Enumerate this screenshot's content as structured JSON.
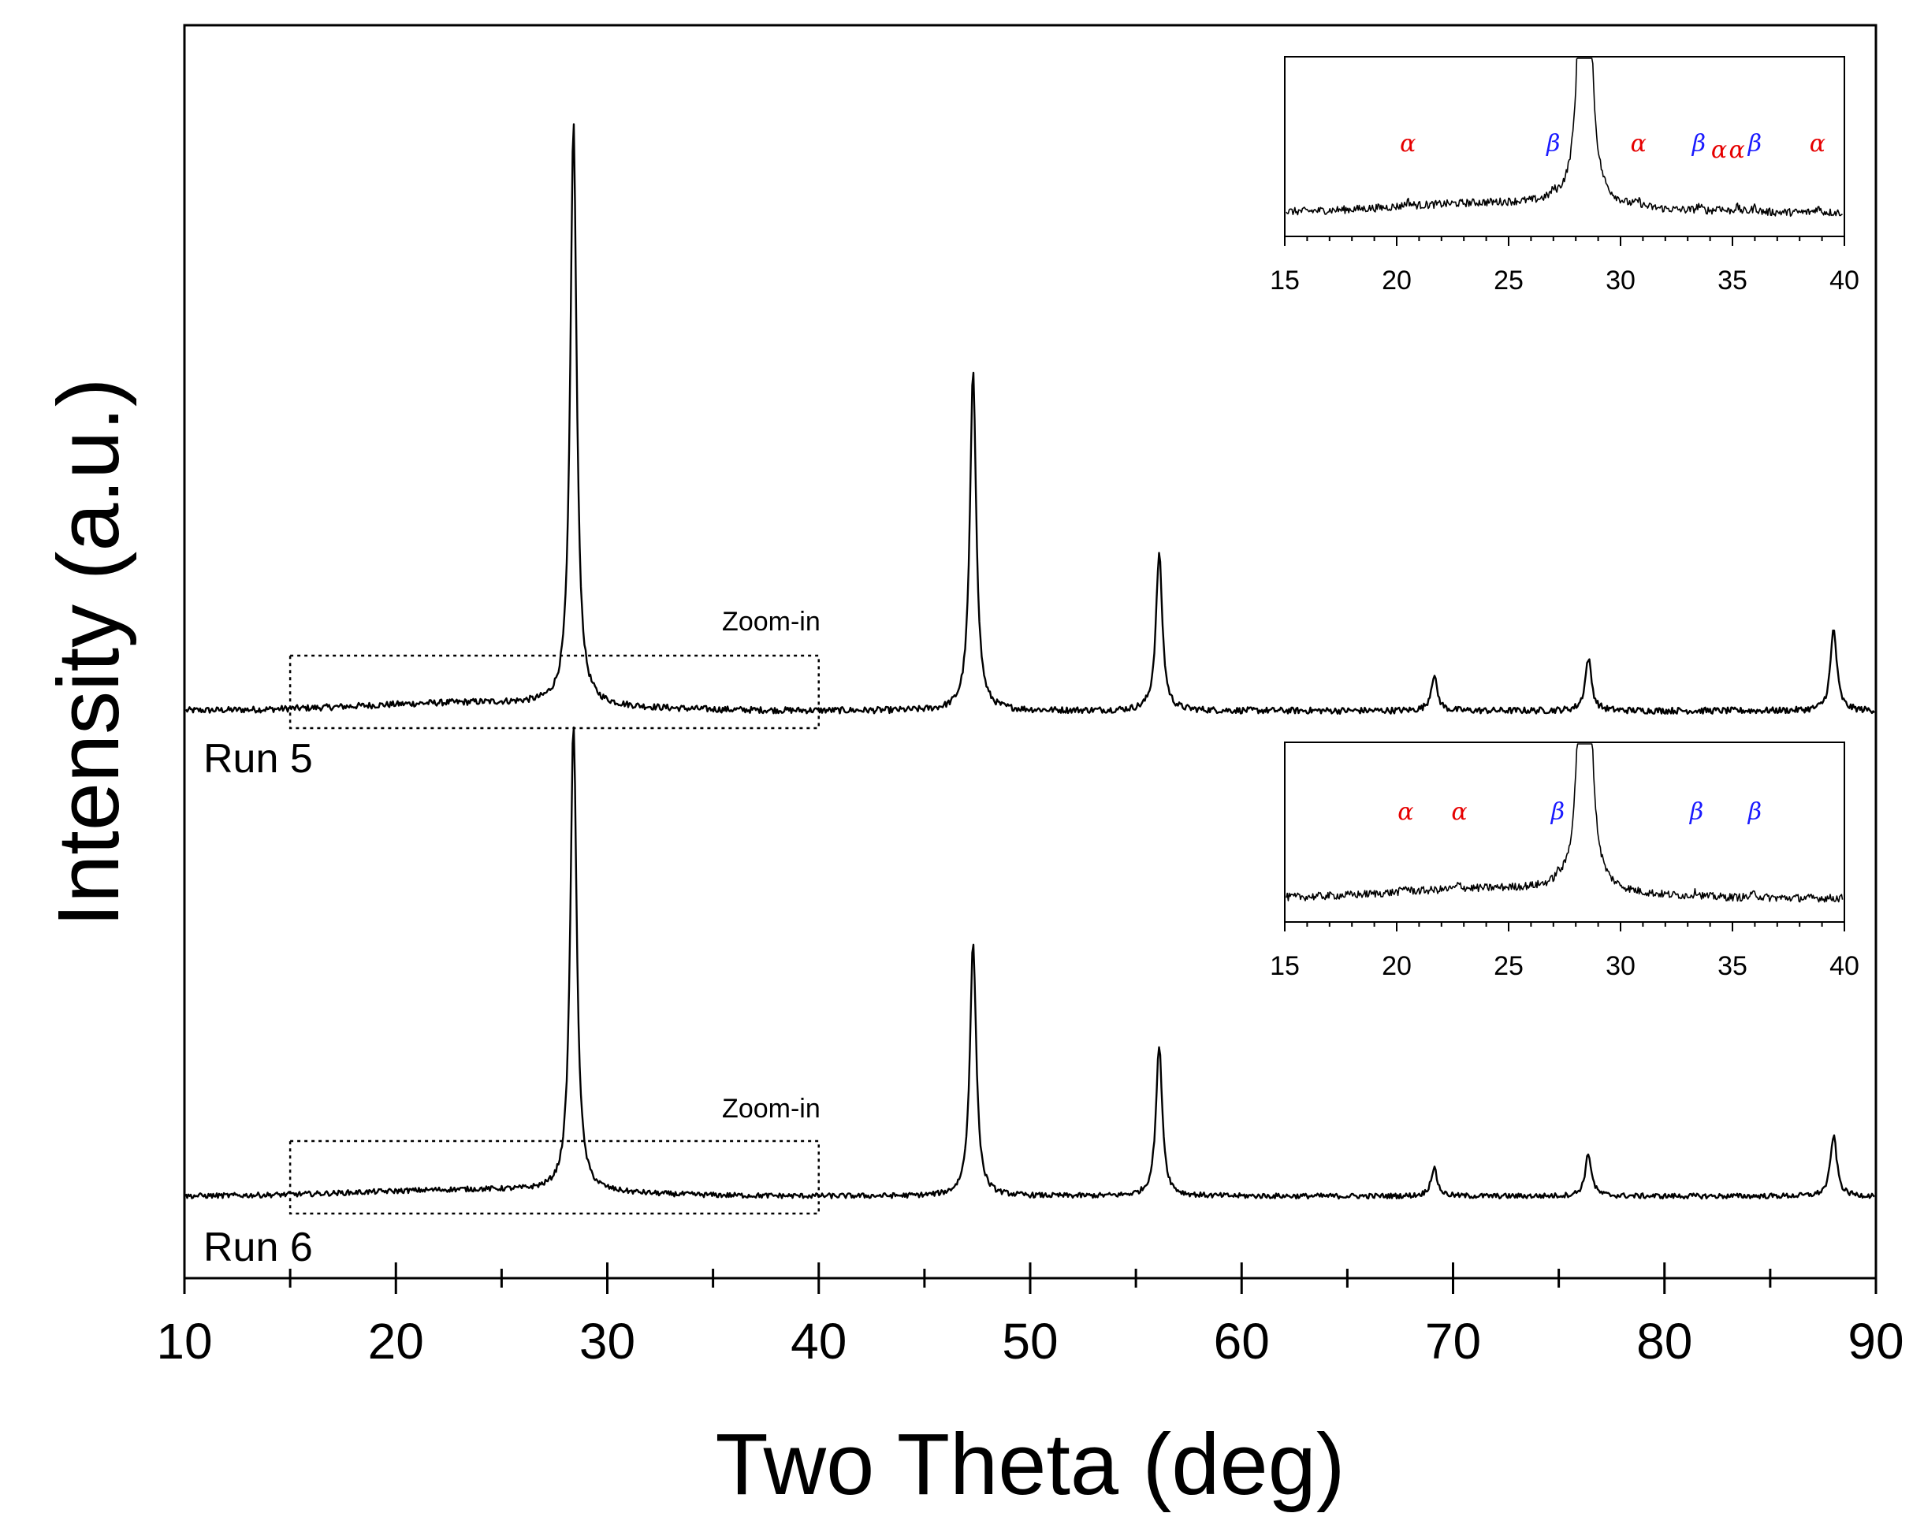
{
  "chart_data": {
    "type": "line",
    "xlabel": "Two Theta (deg)",
    "ylabel": "Intensity (a.u.)",
    "xlim": [
      10,
      90
    ],
    "x_ticks": [
      10,
      20,
      30,
      40,
      50,
      60,
      70,
      80,
      90
    ],
    "colors": {
      "trace": "#000000",
      "alpha": "#e60000",
      "beta": "#1a1aff"
    },
    "series": [
      {
        "name": "Run 5",
        "label": "Run 5",
        "zoom_label": "Zoom-in",
        "zoom_range": [
          15,
          40
        ],
        "peaks": [
          {
            "x": 28.4,
            "height": 100
          },
          {
            "x": 47.3,
            "height": 58
          },
          {
            "x": 56.1,
            "height": 27
          },
          {
            "x": 69.1,
            "height": 6
          },
          {
            "x": 76.4,
            "height": 9
          },
          {
            "x": 88.0,
            "height": 14
          }
        ],
        "inset": {
          "xlim": [
            15,
            40
          ],
          "x_ticks": [
            15,
            20,
            25,
            30,
            35,
            40
          ],
          "phase_labels": [
            {
              "x": 20.5,
              "phase": "alpha",
              "text": "α"
            },
            {
              "x": 27.0,
              "phase": "beta",
              "text": "β"
            },
            {
              "x": 30.8,
              "phase": "alpha",
              "text": "α"
            },
            {
              "x": 33.5,
              "phase": "beta",
              "text": "β"
            },
            {
              "x": 34.4,
              "phase": "alpha",
              "text": "α"
            },
            {
              "x": 35.2,
              "phase": "alpha",
              "text": "α"
            },
            {
              "x": 36.0,
              "phase": "beta",
              "text": "β"
            },
            {
              "x": 38.8,
              "phase": "alpha",
              "text": "α"
            }
          ]
        }
      },
      {
        "name": "Run 6",
        "label": "Run 6",
        "zoom_label": "Zoom-in",
        "zoom_range": [
          15,
          40
        ],
        "peaks": [
          {
            "x": 28.4,
            "height": 100
          },
          {
            "x": 47.3,
            "height": 54
          },
          {
            "x": 56.1,
            "height": 32
          },
          {
            "x": 69.1,
            "height": 6
          },
          {
            "x": 76.4,
            "height": 9
          },
          {
            "x": 88.0,
            "height": 13
          }
        ],
        "inset": {
          "xlim": [
            15,
            40
          ],
          "x_ticks": [
            15,
            20,
            25,
            30,
            35,
            40
          ],
          "phase_labels": [
            {
              "x": 20.4,
              "phase": "alpha",
              "text": "α"
            },
            {
              "x": 22.8,
              "phase": "alpha",
              "text": "α"
            },
            {
              "x": 27.2,
              "phase": "beta",
              "text": "β"
            },
            {
              "x": 33.4,
              "phase": "beta",
              "text": "β"
            },
            {
              "x": 36.0,
              "phase": "beta",
              "text": "β"
            }
          ]
        }
      }
    ]
  }
}
